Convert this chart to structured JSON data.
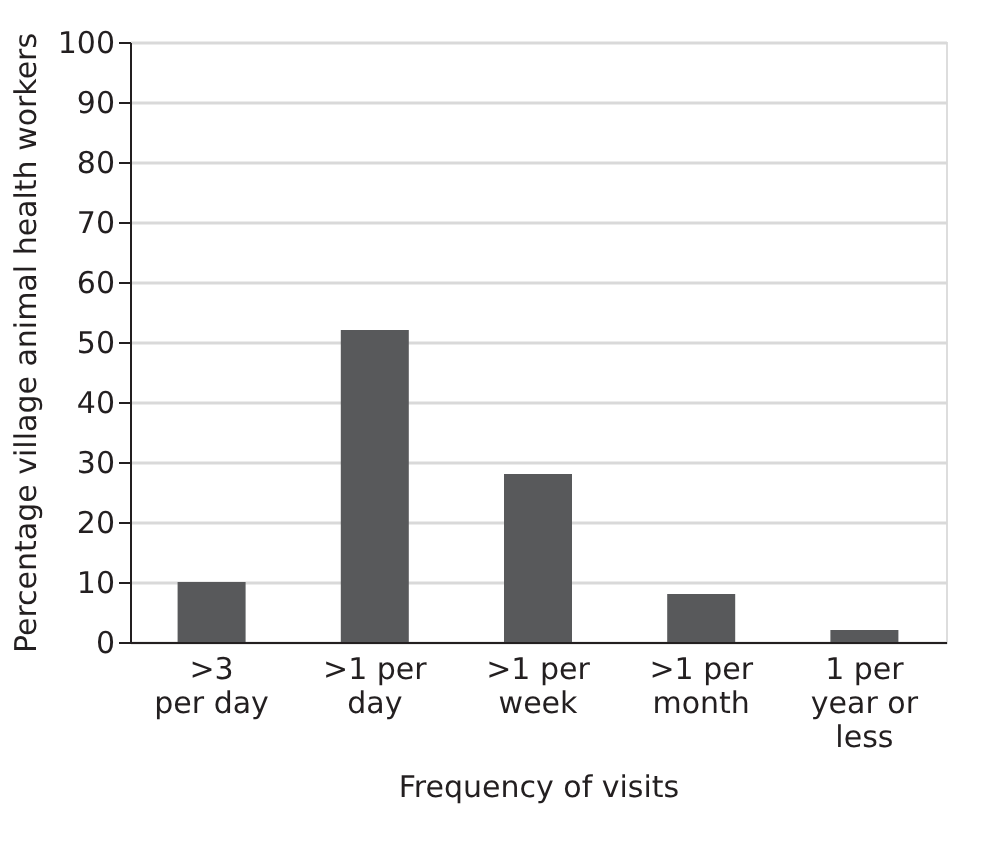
{
  "chart_data": {
    "type": "bar",
    "categories": [
      ">3\nper day",
      ">1 per\nday",
      ">1 per\nweek",
      ">1 per\nmonth",
      "1 per\nyear or\nless"
    ],
    "values": [
      10,
      52,
      28,
      8,
      2
    ],
    "color": "#58595b",
    "xlabel": "Frequency of visits",
    "ylabel": "Percentage village animal health workers",
    "ylim": [
      0,
      100
    ],
    "yticks": [
      0,
      10,
      20,
      30,
      40,
      50,
      60,
      70,
      80,
      90,
      100
    ],
    "grid": "y"
  }
}
